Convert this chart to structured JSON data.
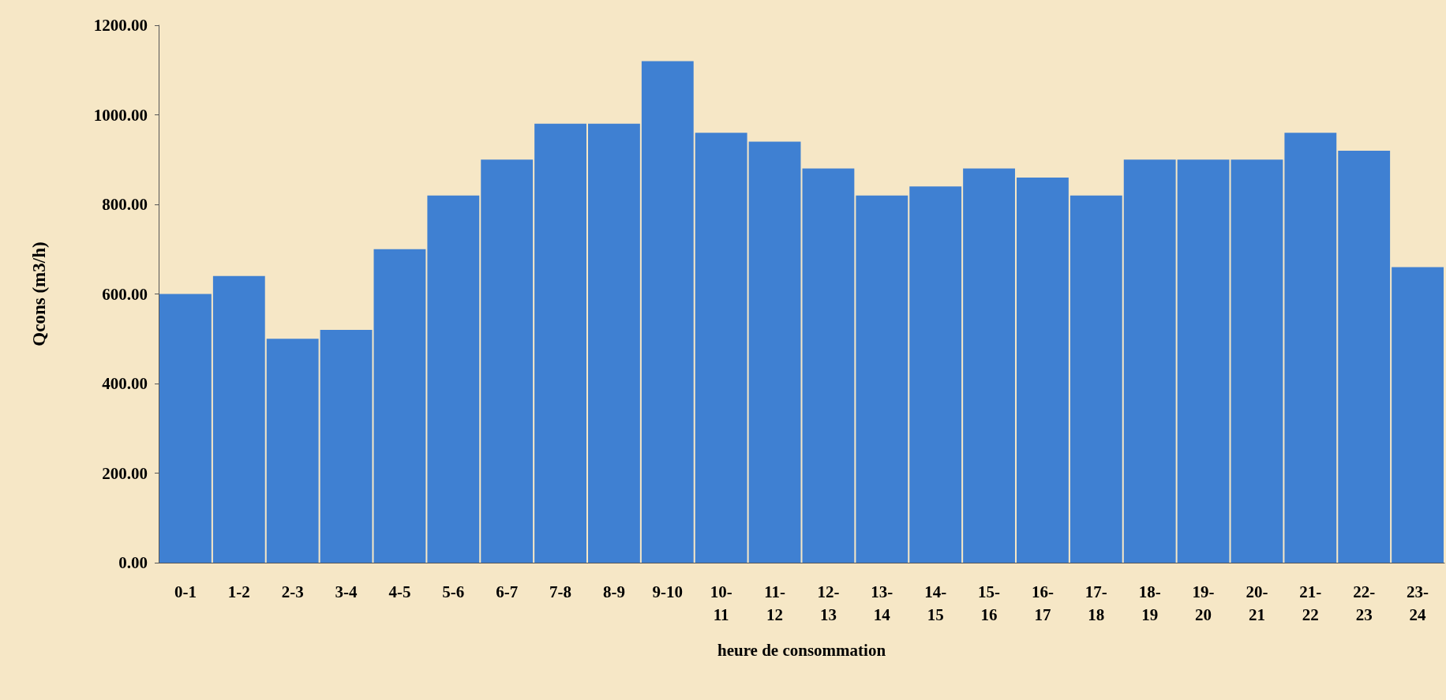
{
  "chart_data": {
    "type": "bar",
    "xlabel": "heure de consommation",
    "ylabel": "Qcons (m3/h)",
    "categories": [
      "0-1",
      "1-2",
      "2-3",
      "3-4",
      "4-5",
      "5-6",
      "6-7",
      "7-8",
      "8-9",
      "9-10",
      "10-11",
      "11-12",
      "12-13",
      "13-14",
      "14-15",
      "15-16",
      "16-17",
      "17-18",
      "18-19",
      "19-20",
      "20-21",
      "21-22",
      "22-23",
      "23-24"
    ],
    "values": [
      600,
      640,
      500,
      520,
      700,
      820,
      900,
      980,
      980,
      1120,
      960,
      940,
      880,
      820,
      840,
      880,
      860,
      820,
      900,
      900,
      900,
      960,
      920,
      660
    ],
    "color": "#3f80d2",
    "ylim": [
      0,
      1200
    ],
    "yticks": [
      {
        "value": 0,
        "label": "0.00"
      },
      {
        "value": 200,
        "label": "200.00"
      },
      {
        "value": 400,
        "label": "400.00"
      },
      {
        "value": 600,
        "label": "600.00"
      },
      {
        "value": 800,
        "label": "800.00"
      },
      {
        "value": 1000,
        "label": "1000.00"
      },
      {
        "value": 1200,
        "label": "1200.00"
      }
    ],
    "grid": false
  }
}
